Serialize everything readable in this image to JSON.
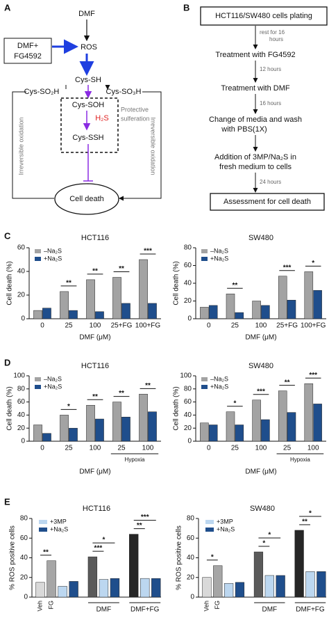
{
  "diagram_a": {
    "letter": "A",
    "dmf": "DMF",
    "box": [
      "DMF+",
      "FG4592"
    ],
    "ros": "ROS",
    "cys_sh": "Cys-SH",
    "cys_so2h": "Cys-SO₂H",
    "cys_so3h": "Cys-SO₃H",
    "cys_soh": "Cys-SOH",
    "h2s": "H₂S",
    "cys_ssh": "Cys-SSH",
    "protective": [
      "Protective",
      "sulferation"
    ],
    "irreversible": "Irreversible oxidation",
    "cell_death": "Cell death"
  },
  "diagram_b": {
    "letter": "B",
    "start": "HCT116/SW480 cells plating",
    "rest": [
      "rest for 16",
      "hours"
    ],
    "step1": "Treatment with FG4592",
    "time1": "12 hours",
    "step2": "Treatment with DMF",
    "time2": "16 hours",
    "step3": [
      "Change of media and wash",
      "with PBS(1X)"
    ],
    "step4": [
      "Addition of 3MP/Na₂S in",
      "fresh medium to cells"
    ],
    "time3": "24 hours",
    "end": "Assessment for cell death"
  },
  "panel_letters": [
    "C",
    "D",
    "E"
  ],
  "chart_data": [
    {
      "type": "bar",
      "title": "HCT116",
      "y_label": "Cell death (%)",
      "x_label": "DMF (μM)",
      "categories": [
        "0",
        "25",
        "100",
        "25+FG",
        "100+FG"
      ],
      "series": [
        {
          "name": "–Na₂S",
          "color": "#a3a3a3",
          "values": [
            7,
            23,
            33,
            35,
            50
          ]
        },
        {
          "name": "+Na₂S",
          "color": "#1f4e8c",
          "values": [
            9,
            7,
            6,
            13,
            13
          ]
        }
      ],
      "significance": [
        null,
        "**",
        "**",
        "**",
        "***"
      ],
      "ylim": [
        0,
        60
      ],
      "yticks": [
        0,
        20,
        40,
        60
      ]
    },
    {
      "type": "bar",
      "title": "SW480",
      "y_label": "Cell death (%)",
      "x_label": "DMF (μM)",
      "categories": [
        "0",
        "25",
        "100",
        "25+FG",
        "100+FG"
      ],
      "series": [
        {
          "name": "–Na₂S",
          "color": "#a3a3a3",
          "values": [
            13,
            28,
            20,
            48,
            53
          ]
        },
        {
          "name": "+Na₂S",
          "color": "#1f4e8c",
          "values": [
            15,
            7,
            15,
            21,
            32
          ]
        }
      ],
      "significance": [
        null,
        "**",
        null,
        "***",
        "*"
      ],
      "ylim": [
        0,
        80
      ],
      "yticks": [
        0,
        20,
        40,
        60,
        80
      ]
    },
    {
      "type": "bar",
      "title": "HCT116",
      "y_label": "Cell death (%)",
      "x_label": "DMF (μM)",
      "categories": [
        "0",
        "25",
        "100",
        "25",
        "100"
      ],
      "bracket_label": "Hypoxia",
      "series": [
        {
          "name": "–Na₂S",
          "color": "#a3a3a3",
          "values": [
            25,
            40,
            55,
            60,
            72
          ]
        },
        {
          "name": "+Na₂S",
          "color": "#1f4e8c",
          "values": [
            12,
            20,
            34,
            37,
            45
          ]
        }
      ],
      "significance": [
        null,
        "*",
        "**",
        "**",
        "**"
      ],
      "ylim": [
        0,
        100
      ],
      "yticks": [
        0,
        20,
        40,
        60,
        80,
        100
      ]
    },
    {
      "type": "bar",
      "title": "SW480",
      "y_label": "Cell death (%)",
      "x_label": "DMF (μM)",
      "categories": [
        "0",
        "25",
        "100",
        "25",
        "100"
      ],
      "bracket_label": "Hypoxia",
      "series": [
        {
          "name": "–Na₂S",
          "color": "#a3a3a3",
          "values": [
            28,
            45,
            63,
            77,
            88
          ]
        },
        {
          "name": "+Na₂S",
          "color": "#1f4e8c",
          "values": [
            25,
            25,
            33,
            44,
            57
          ]
        }
      ],
      "significance": [
        null,
        "*",
        "***",
        "**",
        "***"
      ],
      "ylim": [
        0,
        100
      ],
      "yticks": [
        0,
        20,
        40,
        60,
        80,
        100
      ]
    },
    {
      "type": "bar",
      "title": "HCT116",
      "y_label": "% ROS positive cells",
      "categories": [
        "Veh",
        "FG",
        null,
        null,
        null,
        null,
        null,
        null,
        null,
        null
      ],
      "groups": [
        "DMF",
        "DMF+FG"
      ],
      "values": [
        15,
        37,
        11,
        16,
        41,
        18,
        19,
        64,
        19,
        19
      ],
      "colors": [
        "#d9d9d9",
        "#a6a6a6",
        "#bcd7f0",
        "#1f4e8c",
        "#5a5a5a",
        "#bcd7f0",
        "#1f4e8c",
        "#262626",
        "#bcd7f0",
        "#1f4e8c"
      ],
      "legend": [
        {
          "name": "+3MP",
          "color": "#bcd7f0"
        },
        {
          "name": "+Na₂S",
          "color": "#1f4e8c"
        }
      ],
      "significance": [
        "**",
        "*",
        "***",
        "***",
        "**"
      ],
      "ylim": [
        0,
        80
      ],
      "yticks": [
        0,
        20,
        40,
        60,
        80
      ]
    },
    {
      "type": "bar",
      "title": "SW480",
      "y_label": "% ROS positive cells",
      "categories": [
        "Veh",
        "FG",
        null,
        null,
        null,
        null,
        null,
        null,
        null,
        null
      ],
      "groups": [
        "DMF",
        "DMF+FG"
      ],
      "values": [
        20,
        32,
        14,
        15,
        46,
        22,
        22,
        68,
        26,
        26
      ],
      "colors": [
        "#d9d9d9",
        "#a6a6a6",
        "#bcd7f0",
        "#1f4e8c",
        "#5a5a5a",
        "#bcd7f0",
        "#1f4e8c",
        "#262626",
        "#bcd7f0",
        "#1f4e8c"
      ],
      "legend": [
        {
          "name": "+3MP",
          "color": "#bcd7f0"
        },
        {
          "name": "+Na₂S",
          "color": "#1f4e8c"
        }
      ],
      "significance": [
        "*",
        "*",
        "*",
        "*",
        "**"
      ],
      "ylim": [
        0,
        80
      ],
      "yticks": [
        0,
        20,
        40,
        60,
        80
      ]
    }
  ]
}
